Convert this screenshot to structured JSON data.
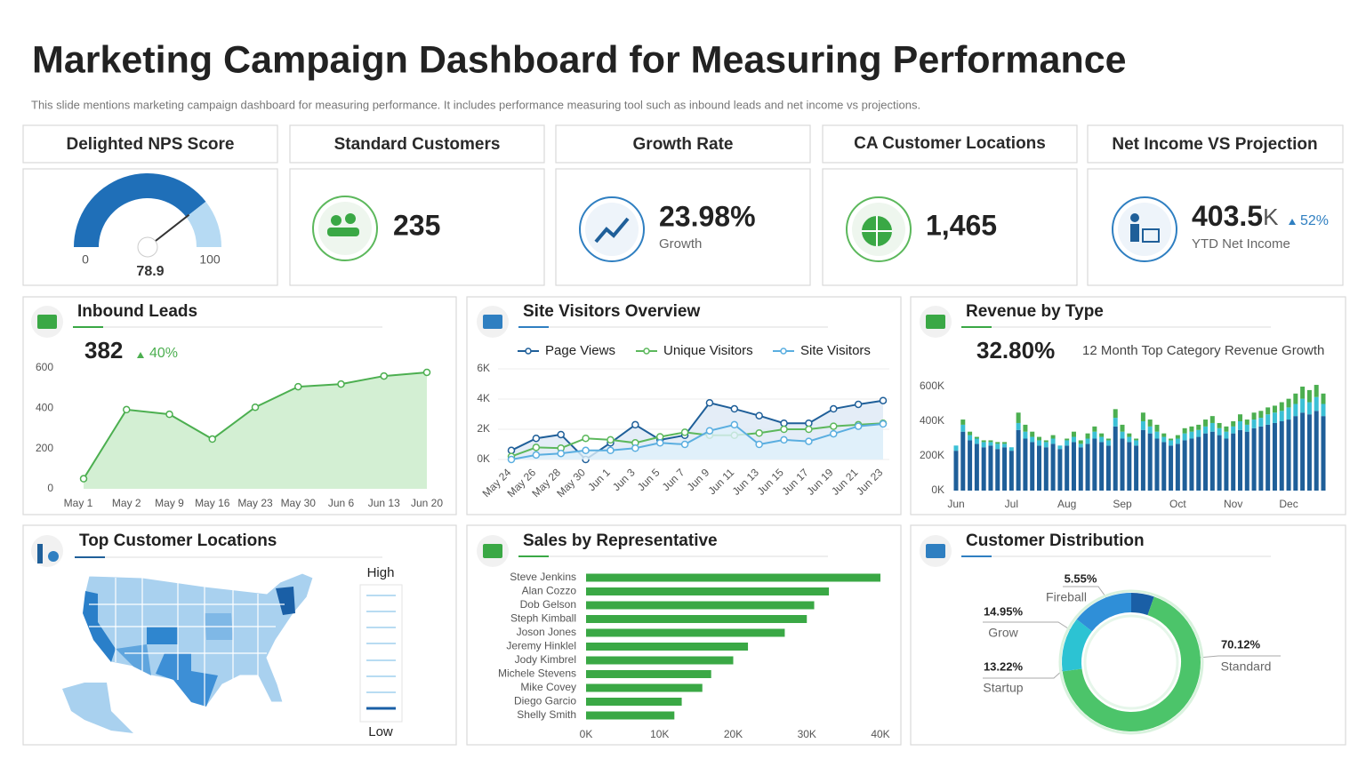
{
  "header": {
    "title": "Marketing Campaign Dashboard for Measuring Performance",
    "subtitle": "This slide mentions marketing campaign dashboard for measuring performance. It includes performance measuring tool such as inbound leads and net income vs projections."
  },
  "kpis": [
    {
      "title": "Delighted NPS Score",
      "value": 78.9,
      "min": 0,
      "max": 100
    },
    {
      "title": "Standard Customers",
      "value": "235"
    },
    {
      "title": "Growth Rate",
      "value": "23.98%",
      "caption": "Growth"
    },
    {
      "title": "CA Customer Locations",
      "value": "1,465"
    },
    {
      "title": "Net Income VS Projection",
      "value": "403.5",
      "unit": "K",
      "change": "52%",
      "caption": "YTD Net Income"
    }
  ],
  "map": {
    "title": "Top Customer Locations",
    "legend_high": "High",
    "legend_low": "Low"
  },
  "chart_data": [
    {
      "type": "area",
      "title": "Inbound Leads",
      "headline": "382",
      "change": "40%",
      "color": "#4caf50",
      "categories": [
        "May 1",
        "May 2",
        "May 9",
        "May 16",
        "May 23",
        "May 30",
        "Jun 6",
        "Jun 13",
        "Jun 20"
      ],
      "values": [
        50,
        393,
        370,
        247,
        405,
        507,
        520,
        560,
        578
      ],
      "ylim": [
        0,
        600
      ],
      "yticks": [
        0,
        200,
        400,
        600
      ]
    },
    {
      "type": "line",
      "title": "Site Visitors Overview",
      "grid": true,
      "categories": [
        "May 24",
        "May 26",
        "May 28",
        "May 30",
        "Jun 1",
        "Jun 3",
        "Jun 5",
        "Jun 7",
        "Jun 9",
        "Jun 11",
        "Jun 13",
        "Jun 15",
        "Jun 17",
        "Jun 19",
        "Jun 21",
        "Jun 23"
      ],
      "series": [
        {
          "name": "Page Views",
          "color": "#1f5f99",
          "values": [
            600,
            1400,
            1650,
            0,
            1100,
            2300,
            1300,
            1600,
            3750,
            3350,
            2900,
            2400,
            2400,
            3350,
            3650,
            3900
          ]
        },
        {
          "name": "Unique Visitors",
          "color": "#5cb85c",
          "values": [
            200,
            800,
            750,
            1400,
            1300,
            1100,
            1500,
            1800,
            1600,
            1600,
            1750,
            2000,
            2000,
            2200,
            2300,
            2400
          ]
        },
        {
          "name": "Site Visitors",
          "color": "#5aaee0",
          "values": [
            0,
            300,
            400,
            600,
            600,
            750,
            1100,
            1000,
            1900,
            2300,
            1000,
            1300,
            1200,
            1700,
            2200,
            2350
          ]
        }
      ],
      "ylim": [
        0,
        6000
      ],
      "yticks": [
        {
          "value": 0,
          "label": "0K"
        },
        {
          "value": 2000,
          "label": "2K"
        },
        {
          "value": 4000,
          "label": "4K"
        },
        {
          "value": 6000,
          "label": "6K"
        }
      ]
    },
    {
      "type": "stacked_bar",
      "title": "Revenue by Type",
      "headline": "32.80%",
      "subtitle": "12 Month Top Category Revenue Growth",
      "categories": [
        "Jun",
        null,
        null,
        null,
        null,
        null,
        null,
        null,
        "Jul",
        null,
        null,
        null,
        null,
        null,
        null,
        null,
        "Aug",
        null,
        null,
        null,
        null,
        null,
        null,
        null,
        "Sep",
        null,
        null,
        null,
        null,
        null,
        null,
        null,
        "Oct",
        null,
        null,
        null,
        null,
        null,
        null,
        null,
        "Nov",
        null,
        null,
        null,
        null,
        null,
        null,
        null,
        "Dec",
        null,
        null,
        null,
        null,
        null
      ],
      "series": [
        {
          "color": "#1f5f99",
          "values": [
            230000,
            340000,
            290000,
            270000,
            250000,
            260000,
            240000,
            250000,
            230000,
            350000,
            300000,
            280000,
            260000,
            250000,
            270000,
            240000,
            260000,
            280000,
            250000,
            270000,
            300000,
            280000,
            260000,
            370000,
            300000,
            280000,
            260000,
            350000,
            330000,
            300000,
            280000,
            260000,
            270000,
            290000,
            300000,
            310000,
            330000,
            340000,
            320000,
            300000,
            330000,
            350000,
            340000,
            360000,
            370000,
            380000,
            390000,
            400000,
            410000,
            430000,
            450000,
            440000,
            460000,
            430000
          ]
        },
        {
          "color": "#3cc0d6",
          "values": [
            30000,
            40000,
            30000,
            30000,
            30000,
            20000,
            30000,
            20000,
            20000,
            40000,
            40000,
            30000,
            30000,
            30000,
            30000,
            20000,
            30000,
            30000,
            20000,
            30000,
            40000,
            30000,
            30000,
            50000,
            40000,
            30000,
            30000,
            50000,
            40000,
            40000,
            30000,
            30000,
            30000,
            40000,
            40000,
            40000,
            40000,
            50000,
            40000,
            40000,
            40000,
            50000,
            40000,
            50000,
            50000,
            60000,
            60000,
            60000,
            70000,
            70000,
            80000,
            70000,
            80000,
            70000
          ]
        },
        {
          "color": "#4caf50",
          "values": [
            0,
            30000,
            20000,
            10000,
            10000,
            10000,
            10000,
            10000,
            0,
            60000,
            40000,
            30000,
            20000,
            10000,
            20000,
            0,
            10000,
            30000,
            20000,
            30000,
            30000,
            20000,
            10000,
            50000,
            40000,
            20000,
            10000,
            50000,
            40000,
            40000,
            20000,
            10000,
            20000,
            30000,
            30000,
            30000,
            40000,
            40000,
            30000,
            30000,
            30000,
            40000,
            30000,
            40000,
            40000,
            40000,
            40000,
            50000,
            50000,
            60000,
            70000,
            70000,
            70000,
            60000
          ]
        }
      ],
      "ylim": [
        0,
        650000
      ],
      "yticks": [
        {
          "value": 0,
          "label": "0K"
        },
        {
          "value": 200000,
          "label": "200K"
        },
        {
          "value": 400000,
          "label": "400K"
        },
        {
          "value": 600000,
          "label": "600K"
        }
      ]
    },
    {
      "type": "hbar",
      "title": "Sales by Representative",
      "color": "#3aa845",
      "categories": [
        "Steve Jenkins",
        "Alan Cozzo",
        "Dob Gelson",
        "Steph Kimball",
        "Joson Jones",
        "Jeremy Hinklel",
        "Jody Kimbrel",
        "Michele Stevens",
        "Mike Covey",
        "Diego Garcio",
        "Shelly Smith"
      ],
      "values": [
        40000,
        33000,
        31000,
        30000,
        27000,
        22000,
        20000,
        17000,
        15800,
        13000,
        12000
      ],
      "xlim": [
        0,
        40000
      ],
      "xticks": [
        {
          "value": 0,
          "label": "0K"
        },
        {
          "value": 10000,
          "label": "10K"
        },
        {
          "value": 20000,
          "label": "20K"
        },
        {
          "value": 30000,
          "label": "30K"
        },
        {
          "value": 40000,
          "label": "40K"
        }
      ]
    },
    {
      "type": "donut",
      "title": "Customer Distribution",
      "categories": [
        "Fireball",
        "Standard",
        "Startup",
        "Grow"
      ],
      "values": [
        5.55,
        70.12,
        13.22,
        14.95
      ],
      "value_labels": [
        "5.55%",
        "70.12%",
        "13.22%",
        "14.95%"
      ],
      "colors": [
        "#1a5fa6",
        "#4cc46a",
        "#2cc3d3",
        "#2f8fd8"
      ]
    }
  ]
}
